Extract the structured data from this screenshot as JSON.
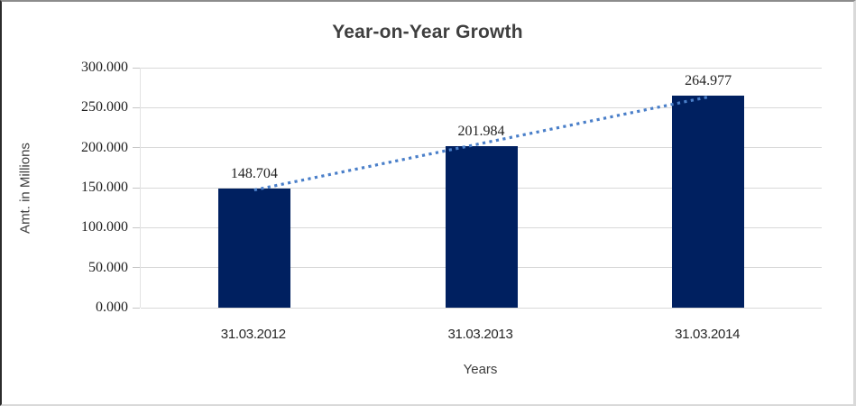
{
  "chart_data": {
    "type": "bar",
    "title": "Year-on-Year Growth",
    "xlabel": "Years",
    "ylabel": "Amt. in Millions",
    "categories": [
      "31.03.2012",
      "31.03.2013",
      "31.03.2014"
    ],
    "values": [
      148.704,
      201.984,
      264.977
    ],
    "data_labels": [
      "148.704",
      "201.984",
      "264.977"
    ],
    "ylim": [
      0,
      300
    ],
    "ytick_step": 50,
    "ytick_labels": [
      "0.000",
      "50.000",
      "100.000",
      "150.000",
      "200.000",
      "250.000",
      "300.000"
    ],
    "grid": true,
    "legend_position": "none",
    "bar_color": "#002060",
    "gridline_color": "#d9d9d9",
    "trendline": {
      "type": "linear",
      "style": "dotted",
      "color": "#4a7fc9"
    }
  }
}
